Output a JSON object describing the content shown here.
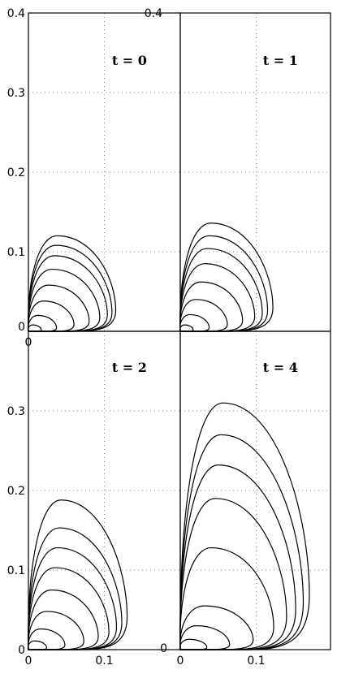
{
  "chart_data": [
    {
      "type": "line",
      "title": "t = 0",
      "xlim": [
        0,
        0.2
      ],
      "ylim": [
        0,
        0.4
      ],
      "grid": true,
      "y_tick_labels": [
        "0",
        "0.1",
        "0.2",
        "0.3",
        "0.4"
      ],
      "x_tick_labels": [
        "0"
      ],
      "contours": [
        {
          "level": 1,
          "top_y": 0.12,
          "right_x": 0.115
        },
        {
          "level": 2,
          "top_y": 0.108,
          "right_x": 0.11
        },
        {
          "level": 3,
          "top_y": 0.095,
          "right_x": 0.104
        },
        {
          "level": 4,
          "top_y": 0.078,
          "right_x": 0.094
        },
        {
          "level": 5,
          "top_y": 0.058,
          "right_x": 0.08
        },
        {
          "level": 6,
          "top_y": 0.038,
          "right_x": 0.06
        },
        {
          "level": 7,
          "top_y": 0.02,
          "right_x": 0.037
        },
        {
          "level": 8,
          "top_y": 0.008,
          "right_x": 0.017
        }
      ]
    },
    {
      "type": "line",
      "title": "t = 1",
      "xlim": [
        0,
        0.2
      ],
      "ylim": [
        0,
        0.4
      ],
      "grid": true,
      "y_tick_labels": [
        "0.4"
      ],
      "x_tick_labels": [],
      "contours": [
        {
          "level": 1,
          "top_y": 0.136,
          "right_x": 0.122
        },
        {
          "level": 2,
          "top_y": 0.12,
          "right_x": 0.115
        },
        {
          "level": 3,
          "top_y": 0.104,
          "right_x": 0.108
        },
        {
          "level": 4,
          "top_y": 0.085,
          "right_x": 0.098
        },
        {
          "level": 5,
          "top_y": 0.062,
          "right_x": 0.082
        },
        {
          "level": 6,
          "top_y": 0.04,
          "right_x": 0.062
        },
        {
          "level": 7,
          "top_y": 0.021,
          "right_x": 0.038
        },
        {
          "level": 8,
          "top_y": 0.008,
          "right_x": 0.017
        }
      ]
    },
    {
      "type": "line",
      "title": "t = 2",
      "xlim": [
        0,
        0.2
      ],
      "ylim": [
        0,
        0.4
      ],
      "grid": true,
      "y_tick_labels": [
        "0",
        "0.1",
        "0.2",
        "0.3"
      ],
      "x_tick_labels": [
        "0",
        "0.1"
      ],
      "contours": [
        {
          "level": 1,
          "top_y": 0.188,
          "right_x": 0.13
        },
        {
          "level": 2,
          "top_y": 0.153,
          "right_x": 0.123
        },
        {
          "level": 3,
          "top_y": 0.128,
          "right_x": 0.116
        },
        {
          "level": 4,
          "top_y": 0.103,
          "right_x": 0.106
        },
        {
          "level": 5,
          "top_y": 0.075,
          "right_x": 0.092
        },
        {
          "level": 6,
          "top_y": 0.048,
          "right_x": 0.073
        },
        {
          "level": 7,
          "top_y": 0.026,
          "right_x": 0.048
        },
        {
          "level": 8,
          "top_y": 0.011,
          "right_x": 0.024
        }
      ]
    },
    {
      "type": "line",
      "title": "t = 4",
      "xlim": [
        0,
        0.2
      ],
      "ylim": [
        0,
        0.4
      ],
      "grid": true,
      "y_tick_labels": [
        "0"
      ],
      "x_tick_labels": [
        "0",
        "0.1"
      ],
      "contours": [
        {
          "level": 1,
          "top_y": 0.31,
          "right_x": 0.17
        },
        {
          "level": 2,
          "top_y": 0.27,
          "right_x": 0.162
        },
        {
          "level": 3,
          "top_y": 0.232,
          "right_x": 0.152
        },
        {
          "level": 4,
          "top_y": 0.19,
          "right_x": 0.14
        },
        {
          "level": 5,
          "top_y": 0.128,
          "right_x": 0.123
        },
        {
          "level": 6,
          "top_y": 0.055,
          "right_x": 0.096
        },
        {
          "level": 7,
          "top_y": 0.03,
          "right_x": 0.065
        },
        {
          "level": 8,
          "top_y": 0.013,
          "right_x": 0.035
        }
      ]
    }
  ]
}
